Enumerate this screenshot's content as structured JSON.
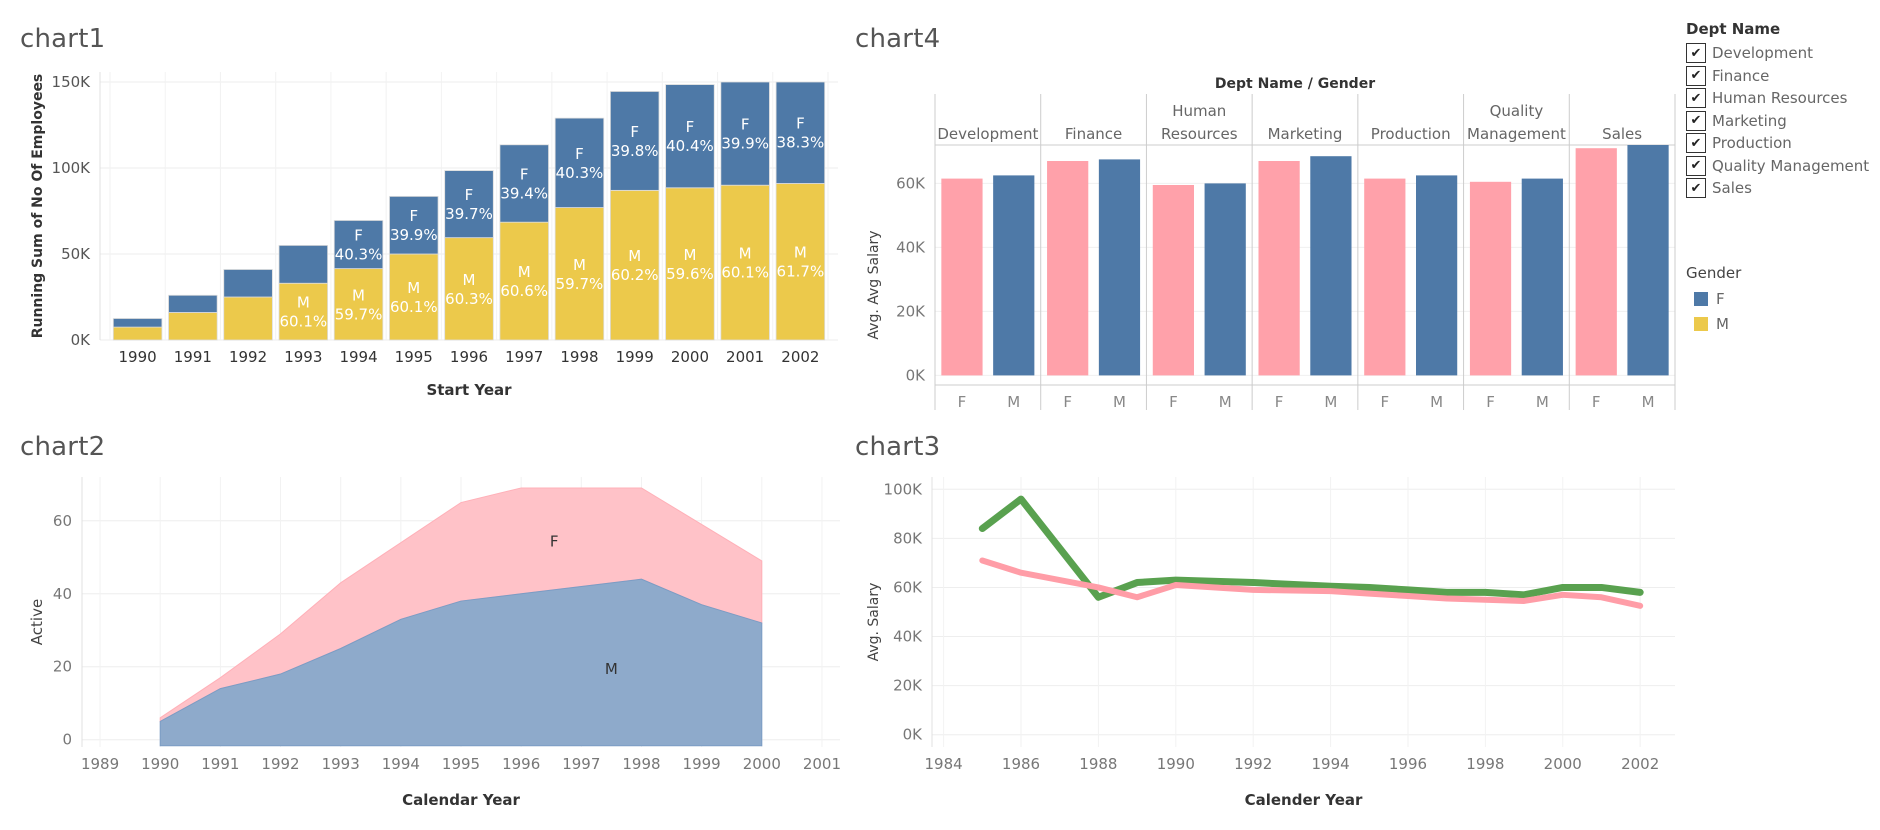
{
  "titles": {
    "chart1": "chart1",
    "chart2": "chart2",
    "chart3": "chart3",
    "chart4": "chart4"
  },
  "colors": {
    "F_blue": "#4e79a7",
    "M_yellow": "#ecc94b",
    "F_pink": "#ffa1aa",
    "M_blue": "#4e79a7",
    "area_F": "#ffc2c8",
    "area_M": "#8eaacb",
    "line_green": "#59a14f",
    "line_pink": "#ff9da7"
  },
  "legend": {
    "dept_title": "Dept Name",
    "depts": [
      "Development",
      "Finance",
      "Human Resources",
      "Marketing",
      "Production",
      "Quality Management",
      "Sales"
    ],
    "gender_title": "Gender",
    "genders": [
      {
        "label": "F",
        "color": "#4e79a7"
      },
      {
        "label": "M",
        "color": "#ecc94b"
      }
    ]
  },
  "chart_data": [
    {
      "id": "chart1",
      "type": "bar",
      "title": "chart1",
      "xlabel": "Start Year",
      "ylabel": "Running Sum of No Of Employees",
      "yticks": [
        "0K",
        "50K",
        "100K",
        "150K"
      ],
      "ylim": [
        0,
        150000
      ],
      "categories": [
        "1990",
        "1991",
        "1992",
        "1993",
        "1994",
        "1995",
        "1996",
        "1997",
        "1998",
        "1999",
        "2000",
        "2001",
        "2002"
      ],
      "series": [
        {
          "name": "M",
          "values": [
            7500,
            16000,
            25000,
            33000,
            41500,
            50000,
            59500,
            68500,
            77000,
            87000,
            88500,
            90000,
            91000
          ],
          "labels": [
            "",
            "",
            "",
            "M\n60.1%",
            "M\n59.7%",
            "M\n60.1%",
            "M\n60.3%",
            "M\n60.6%",
            "M\n59.7%",
            "M\n60.2%",
            "M\n59.6%",
            "M\n60.1%",
            "M\n61.7%"
          ]
        },
        {
          "name": "F",
          "values": [
            5000,
            10000,
            16000,
            22000,
            28000,
            33500,
            39000,
            45000,
            52000,
            57500,
            60000,
            60000,
            59000
          ],
          "labels": [
            "",
            "",
            "",
            "",
            "F\n40.3%",
            "F\n39.9%",
            "F\n39.7%",
            "F\n39.4%",
            "F\n40.3%",
            "F\n39.8%",
            "F\n40.4%",
            "F\n39.9%",
            "F\n38.3%"
          ]
        }
      ]
    },
    {
      "id": "chart2",
      "type": "area",
      "title": "chart2",
      "xlabel": "Calendar Year",
      "ylabel": "Active",
      "xticks": [
        "1989",
        "1990",
        "1991",
        "1992",
        "1993",
        "1994",
        "1995",
        "1996",
        "1997",
        "1998",
        "1999",
        "2000",
        "2001"
      ],
      "yticks": [
        "0",
        "20",
        "40",
        "60"
      ],
      "ylim": [
        -2,
        72
      ],
      "x": [
        1990,
        1991,
        1992,
        1993,
        1994,
        1995,
        1996,
        1997,
        1998,
        1999,
        2000
      ],
      "series": [
        {
          "name": "M",
          "values": [
            5,
            14,
            18,
            25,
            33,
            38,
            40,
            42,
            44,
            37,
            32
          ]
        },
        {
          "name": "F",
          "values": [
            1,
            3,
            11,
            18,
            21,
            27,
            29,
            27,
            25,
            22,
            17
          ]
        }
      ],
      "annotations": [
        {
          "text": "F",
          "x": 1996.55,
          "y": 53
        },
        {
          "text": "M",
          "x": 1997.5,
          "y": 18
        }
      ]
    },
    {
      "id": "chart3",
      "type": "line",
      "title": "chart3",
      "xlabel": "Calender Year",
      "ylabel": "Avg. Salary",
      "xticks": [
        "1984",
        "1986",
        "1988",
        "1990",
        "1992",
        "1994",
        "1996",
        "1998",
        "2000",
        "2002"
      ],
      "yticks": [
        "0K",
        "20K",
        "40K",
        "60K",
        "80K",
        "100K"
      ],
      "ylim": [
        -5000,
        105000
      ],
      "xlim": [
        1983.7,
        2002.9
      ],
      "series": [
        {
          "name": "green",
          "x": [
            1985,
            1986,
            1988,
            1989,
            1990,
            1992,
            1994,
            1995,
            1996,
            1997,
            1998,
            1999,
            2000,
            2001,
            2002
          ],
          "values": [
            84000,
            96000,
            56000,
            62000,
            63000,
            62000,
            60500,
            60000,
            59000,
            58000,
            58000,
            57000,
            60000,
            60000,
            58000
          ]
        },
        {
          "name": "pink",
          "x": [
            1985,
            1986,
            1988,
            1989,
            1990,
            1992,
            1994,
            1995,
            1996,
            1997,
            1998,
            1999,
            2000,
            2001,
            2002
          ],
          "values": [
            71000,
            66000,
            60000,
            56000,
            61000,
            59000,
            58500,
            57500,
            56500,
            55500,
            55000,
            54500,
            57000,
            56000,
            52500
          ]
        }
      ]
    },
    {
      "id": "chart4",
      "type": "bar",
      "title": "chart4",
      "header": "Dept Name  /  Gender",
      "ylabel": "Avg. Avg Salary",
      "yticks": [
        "0K",
        "20K",
        "40K",
        "60K"
      ],
      "ylim": [
        -3000,
        72000
      ],
      "depts": [
        {
          "name": "Development",
          "F": 61500,
          "M": 62500
        },
        {
          "name": "Finance",
          "F": 67000,
          "M": 67500
        },
        {
          "name": "Human Resources",
          "F": 59500,
          "M": 60000
        },
        {
          "name": "Marketing",
          "F": 67000,
          "M": 68500
        },
        {
          "name": "Production",
          "F": 61500,
          "M": 62500
        },
        {
          "name": "Quality Management",
          "F": 60500,
          "M": 61500
        },
        {
          "name": "Sales",
          "F": 71000,
          "M": 72000
        }
      ],
      "gender_labels": [
        "F",
        "M"
      ]
    }
  ]
}
